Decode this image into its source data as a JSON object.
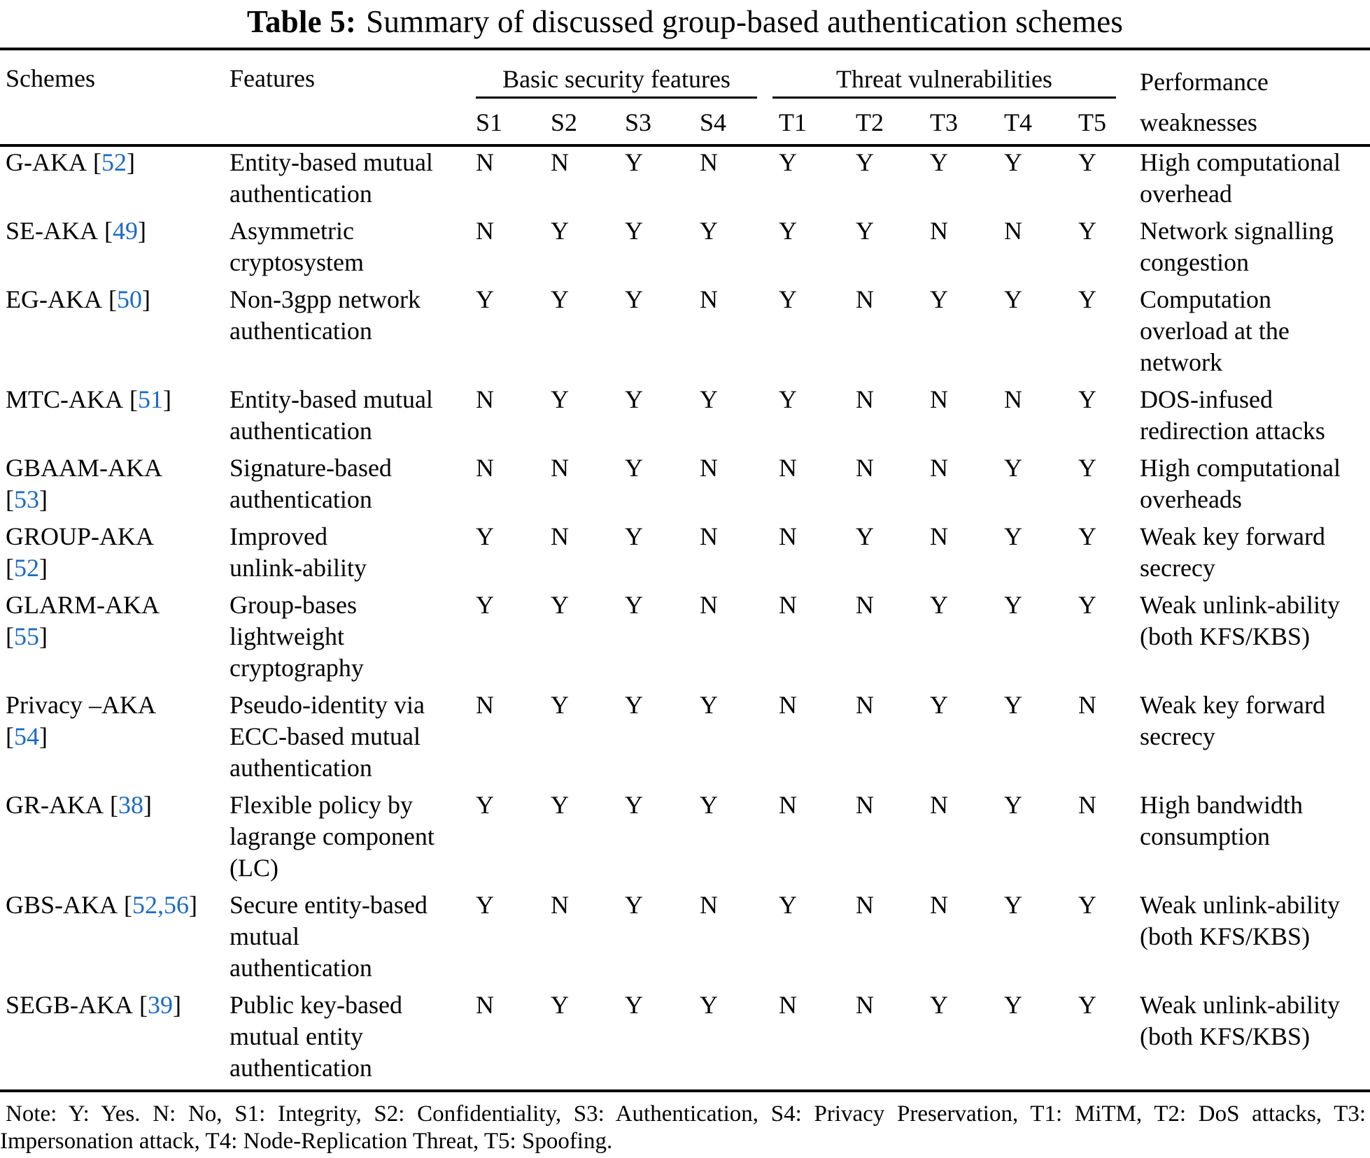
{
  "title": {
    "label": "Table 5:",
    "text": "Summary of discussed group-based authentication schemes"
  },
  "colors": {
    "link": "#1b6ac5",
    "text": "#000000",
    "background": "#ffffff",
    "rule": "#000000"
  },
  "table": {
    "columns": {
      "schemes": "Schemes",
      "features": "Features",
      "basic_group": "Basic security features",
      "threat_group": "Threat vulnerabilities",
      "performance": [
        "Performance",
        "weaknesses"
      ],
      "s_cols": [
        "S1",
        "S2",
        "S3",
        "S4"
      ],
      "t_cols": [
        "T1",
        "T2",
        "T3",
        "T4",
        "T5"
      ]
    },
    "rows": [
      {
        "scheme": {
          "name": "G-AKA",
          "ref": "52",
          "ref_newline": false
        },
        "features": [
          "Entity-based mutual",
          "authentication"
        ],
        "s": [
          "N",
          "N",
          "Y",
          "N"
        ],
        "t": [
          "Y",
          "Y",
          "Y",
          "Y",
          "Y"
        ],
        "weakness": [
          "High computational",
          "overhead"
        ]
      },
      {
        "scheme": {
          "name": "SE-AKA",
          "ref": "49",
          "ref_newline": false
        },
        "features": [
          "Asymmetric",
          "cryptosystem"
        ],
        "s": [
          "N",
          "Y",
          "Y",
          "Y"
        ],
        "t": [
          "Y",
          "Y",
          "N",
          "N",
          "Y"
        ],
        "weakness": [
          "Network signalling",
          "congestion"
        ]
      },
      {
        "scheme": {
          "name": "EG-AKA",
          "ref": "50",
          "ref_newline": false
        },
        "features": [
          "Non-3gpp network",
          "authentication"
        ],
        "s": [
          "Y",
          "Y",
          "Y",
          "N"
        ],
        "t": [
          "Y",
          "N",
          "Y",
          "Y",
          "Y"
        ],
        "weakness": [
          "Computation",
          "overload at the",
          "network"
        ]
      },
      {
        "scheme": {
          "name": "MTC-AKA",
          "ref": "51",
          "ref_newline": false
        },
        "features": [
          "Entity-based mutual",
          "authentication"
        ],
        "s": [
          "N",
          "Y",
          "Y",
          "Y"
        ],
        "t": [
          "Y",
          "N",
          "N",
          "N",
          "Y"
        ],
        "weakness": [
          "DOS-infused",
          "redirection attacks"
        ]
      },
      {
        "scheme": {
          "name": "GBAAM-AKA",
          "ref": "53",
          "ref_newline": true
        },
        "features": [
          "Signature-based",
          "authentication"
        ],
        "s": [
          "N",
          "N",
          "Y",
          "N"
        ],
        "t": [
          "N",
          "N",
          "N",
          "Y",
          "Y"
        ],
        "weakness": [
          "High computational",
          "overheads"
        ]
      },
      {
        "scheme": {
          "name": "GROUP-AKA",
          "ref": "52",
          "ref_newline": true
        },
        "features": [
          "Improved",
          "unlink-ability"
        ],
        "s": [
          "Y",
          "N",
          "Y",
          "N"
        ],
        "t": [
          "N",
          "Y",
          "N",
          "Y",
          "Y"
        ],
        "weakness": [
          "Weak key forward",
          "secrecy"
        ]
      },
      {
        "scheme": {
          "name": "GLARM-AKA",
          "ref": "55",
          "ref_newline": true
        },
        "features": [
          "Group-bases",
          "lightweight",
          "cryptography"
        ],
        "s": [
          "Y",
          "Y",
          "Y",
          "N"
        ],
        "t": [
          "N",
          "N",
          "Y",
          "Y",
          "Y"
        ],
        "weakness": [
          "Weak unlink-ability",
          "(both KFS/KBS)"
        ]
      },
      {
        "scheme": {
          "name": "Privacy –AKA",
          "ref": "54",
          "ref_newline": true
        },
        "features": [
          "Pseudo-identity via",
          "ECC-based mutual",
          "authentication"
        ],
        "s": [
          "N",
          "Y",
          "Y",
          "Y"
        ],
        "t": [
          "N",
          "N",
          "Y",
          "Y",
          "N"
        ],
        "weakness": [
          "Weak key forward",
          "secrecy"
        ]
      },
      {
        "scheme": {
          "name": "GR-AKA",
          "ref": "38",
          "ref_newline": false
        },
        "features": [
          "Flexible policy by",
          "lagrange component",
          "(LC)"
        ],
        "s": [
          "Y",
          "Y",
          "Y",
          "Y"
        ],
        "t": [
          "N",
          "N",
          "N",
          "Y",
          "N"
        ],
        "weakness": [
          "High bandwidth",
          "consumption"
        ]
      },
      {
        "scheme": {
          "name": "GBS-AKA",
          "ref": "52,56",
          "ref_newline": false
        },
        "features": [
          "Secure entity-based",
          "mutual",
          "authentication"
        ],
        "s": [
          "Y",
          "N",
          "Y",
          "N"
        ],
        "t": [
          "Y",
          "N",
          "N",
          "Y",
          "Y"
        ],
        "weakness": [
          "Weak unlink-ability",
          "(both KFS/KBS)"
        ]
      },
      {
        "scheme": {
          "name": "SEGB-AKA",
          "ref": "39",
          "ref_newline": false
        },
        "features": [
          "Public key-based",
          "mutual entity",
          "authentication"
        ],
        "s": [
          "N",
          "Y",
          "Y",
          "Y"
        ],
        "t": [
          "N",
          "N",
          "Y",
          "Y",
          "Y"
        ],
        "weakness": [
          "Weak unlink-ability",
          "(both KFS/KBS)"
        ]
      }
    ]
  },
  "note": {
    "line1": "Note: Y: Yes. N: No, S1: Integrity, S2: Confidentiality, S3: Authentication, S4: Privacy Preservation, T1: MiTM, T2: DoS attacks, T3:",
    "line2": "Impersonation attack, T4: Node-Replication Threat, T5: Spoofing."
  }
}
